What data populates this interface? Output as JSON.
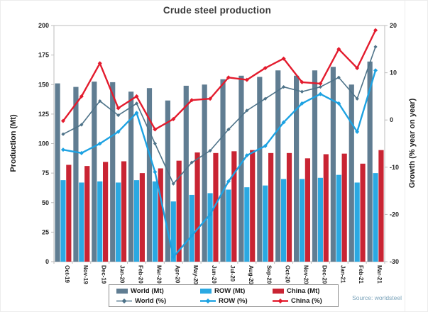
{
  "title": "Crude steel production",
  "source": "Source: worldsteel",
  "chart_data": {
    "type": "combo (bar + line)",
    "title": "Crude steel production",
    "grid": false,
    "legend_position": "bottom",
    "categories": [
      "Oct-19",
      "Nov-19",
      "Dec-19",
      "Jan-20",
      "Feb-20",
      "Mar-20",
      "Apr-20",
      "May-20",
      "Jun-20",
      "Jul-20",
      "Aug-20",
      "Sep-20",
      "Oct-20",
      "Nov-20",
      "Dec-20",
      "Jan-21",
      "Feb-21",
      "Mar-21"
    ],
    "left_axis": {
      "label": "Production (Mt)",
      "min": 0,
      "max": 200,
      "step": 25,
      "ticks": [
        0,
        25,
        50,
        75,
        100,
        125,
        150,
        175,
        200
      ]
    },
    "right_axis": {
      "label": "Growth (% year on year)",
      "min": -30,
      "max": 20,
      "step": 10,
      "ticks": [
        20,
        10,
        0,
        -10,
        -20,
        -30
      ]
    },
    "bar_series": [
      {
        "name": "World (Mt)",
        "color": "#607d92",
        "values": [
          151,
          148,
          152.5,
          152,
          144,
          147,
          136.5,
          149,
          150,
          154.5,
          157.5,
          156.5,
          162,
          157.5,
          162,
          165,
          150,
          169.5
        ]
      },
      {
        "name": "ROW (Mt)",
        "color": "#2ba9e2",
        "values": [
          69,
          67,
          68,
          67,
          69,
          68,
          51,
          56.5,
          58,
          61,
          63,
          64.5,
          70,
          70,
          71,
          73.5,
          67,
          75
        ]
      },
      {
        "name": "China (Mt)",
        "color": "#c92433",
        "values": [
          82,
          81,
          84.5,
          85,
          75,
          79,
          85.5,
          92.5,
          92,
          93.5,
          94.5,
          92,
          92,
          87.5,
          91,
          91.5,
          83,
          94.5
        ]
      }
    ],
    "line_series": [
      {
        "name": "World (%)",
        "color": "#4e7389",
        "width": 1.6,
        "marker": 2.6,
        "values": [
          -3,
          -1,
          4,
          1,
          3.5,
          -5,
          -13.5,
          -9,
          -6.5,
          -2,
          2,
          4.5,
          7,
          6,
          7,
          9,
          4.5,
          15.5
        ]
      },
      {
        "name": "ROW (%)",
        "color": "#1da2e2",
        "width": 2.4,
        "marker": 3,
        "values": [
          -6.3,
          -7,
          -5,
          -2.5,
          1.5,
          -11,
          -29,
          -24.5,
          -20,
          -13,
          -7.5,
          -5.5,
          -0.5,
          3.5,
          5.5,
          3.5,
          -2.5,
          10.5
        ]
      },
      {
        "name": "China (%)",
        "color": "#e31b2d",
        "width": 2.4,
        "marker": 3,
        "values": [
          -0.2,
          5,
          12,
          2.5,
          5,
          -2,
          0.2,
          4.2,
          4.5,
          9,
          8.5,
          11,
          13,
          8,
          7.7,
          15,
          11,
          19
        ]
      }
    ]
  }
}
